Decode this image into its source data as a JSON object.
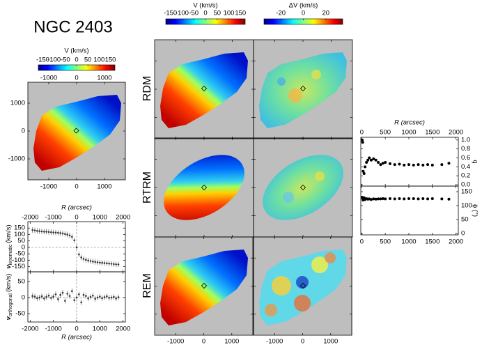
{
  "title": "NGC 2403",
  "row_labels": [
    "RDM",
    "RTRM",
    "REM"
  ],
  "colorbars": [
    {
      "label": "V (km/s)",
      "lim": [
        -170,
        170
      ],
      "ticks": [
        -150,
        -100,
        -50,
        0,
        50,
        100,
        150
      ]
    },
    {
      "label": "V (km/s)",
      "lim": [
        -170,
        170
      ],
      "ticks": [
        -150,
        -100,
        -50,
        0,
        50,
        100,
        150
      ]
    },
    {
      "label": "ΔV (km/s)",
      "lim": [
        -35,
        35
      ],
      "ticks": [
        -20,
        0,
        20
      ]
    }
  ],
  "map_axes": {
    "lim": [
      -1750,
      1750
    ],
    "ticks": [
      -1000,
      0,
      1000
    ]
  },
  "chart_data": [
    {
      "type": "scatter",
      "xlabel": "R (arcsec)",
      "ylabel": {
        "symbol": "v",
        "subscript": "kinematic",
        "unit": "(km/s)"
      },
      "xlim": [
        -2100,
        2100
      ],
      "xticks": [
        -2000,
        -1000,
        0,
        1000,
        2000
      ],
      "ylim": [
        -190,
        200
      ],
      "yticks": [
        -150,
        -100,
        -50,
        0,
        50,
        100,
        150
      ],
      "color": "#333333",
      "x": [
        -1900,
        -1800,
        -1700,
        -1600,
        -1500,
        -1400,
        -1300,
        -1200,
        -1100,
        -1000,
        -900,
        -800,
        -700,
        -600,
        -500,
        -400,
        -300,
        -200,
        -100,
        0,
        100,
        200,
        300,
        400,
        500,
        600,
        700,
        800,
        900,
        1000,
        1100,
        1200,
        1300,
        1400,
        1500,
        1600,
        1700,
        1800
      ],
      "values": [
        135,
        132,
        128,
        126,
        124,
        122,
        122,
        120,
        118,
        116,
        115,
        113,
        111,
        108,
        104,
        100,
        93,
        82,
        55,
        0,
        -55,
        -78,
        -90,
        -97,
        -102,
        -106,
        -110,
        -113,
        -116,
        -119,
        -120,
        -122,
        -124,
        -126,
        -127,
        -130,
        -132,
        -133
      ]
    },
    {
      "type": "scatter",
      "xlabel": "R (arcsec)",
      "ylabel": {
        "symbol": "v",
        "subscript": "orthogonal",
        "unit": "(km/s)"
      },
      "xlim": [
        -2100,
        2100
      ],
      "xticks": [
        -2000,
        -1000,
        0,
        1000,
        2000
      ],
      "ylim": [
        -76,
        80
      ],
      "yticks": [
        -50,
        0,
        50
      ],
      "color": "#333333",
      "x": [
        -1900,
        -1800,
        -1700,
        -1600,
        -1500,
        -1400,
        -1300,
        -1200,
        -1100,
        -1000,
        -900,
        -800,
        -700,
        -600,
        -500,
        -400,
        -300,
        -200,
        -100,
        0,
        100,
        200,
        300,
        400,
        500,
        600,
        700,
        800,
        900,
        1000,
        1100,
        1200,
        1300,
        1400,
        1500,
        1600,
        1700,
        1800
      ],
      "values": [
        5,
        3,
        -2,
        0,
        4,
        -3,
        2,
        6,
        -1,
        3,
        10,
        -5,
        8,
        15,
        -10,
        12,
        5,
        20,
        -8,
        0,
        10,
        -15,
        8,
        5,
        -3,
        2,
        6,
        -4,
        0,
        3,
        -2,
        1,
        4,
        -1,
        0,
        2,
        -3,
        1
      ]
    },
    {
      "type": "scatter",
      "xlabel": "R (arcsec)",
      "ylabel": "q",
      "xlim": [
        -20,
        2050
      ],
      "xticks": [
        0,
        500,
        1000,
        1500,
        2000
      ],
      "ylim": [
        -0.03,
        1.06
      ],
      "yticks": [
        {
          "value": 0,
          "label": "0.0"
        },
        0.2,
        0.4,
        0.6,
        0.8,
        {
          "value": 1,
          "label": "1.0"
        }
      ],
      "color": "#000000",
      "x": [
        10,
        20,
        30,
        50,
        70,
        100,
        130,
        160,
        200,
        250,
        300,
        350,
        400,
        450,
        500,
        600,
        700,
        800,
        900,
        1000,
        1100,
        1200,
        1300,
        1400,
        1500,
        1700,
        1850
      ],
      "values": [
        1.0,
        0.95,
        0.3,
        0.25,
        0.4,
        0.5,
        0.55,
        0.6,
        0.55,
        0.58,
        0.55,
        0.5,
        0.45,
        0.48,
        0.5,
        0.47,
        0.45,
        0.46,
        0.44,
        0.45,
        0.44,
        0.45,
        0.44,
        0.45,
        0.44,
        0.45,
        0.48
      ]
    },
    {
      "type": "scatter",
      "ylabel": "ϕ (°)",
      "xlim": [
        -20,
        2050
      ],
      "xticks": [
        0,
        500,
        1000,
        1500,
        2000
      ],
      "ylim": [
        -5,
        170
      ],
      "yticks": [
        0,
        50,
        100,
        150
      ],
      "color": "#000000",
      "x": [
        10,
        20,
        30,
        50,
        70,
        100,
        130,
        160,
        200,
        250,
        300,
        350,
        400,
        450,
        500,
        600,
        700,
        800,
        900,
        1000,
        1100,
        1200,
        1300,
        1400,
        1500,
        1700,
        1850
      ],
      "values": [
        130,
        125,
        120,
        128,
        122,
        125,
        123,
        124,
        122,
        124,
        123,
        124,
        124,
        125,
        124,
        125,
        124,
        125,
        124,
        125,
        125,
        124,
        125,
        124,
        125,
        124,
        123
      ]
    }
  ]
}
